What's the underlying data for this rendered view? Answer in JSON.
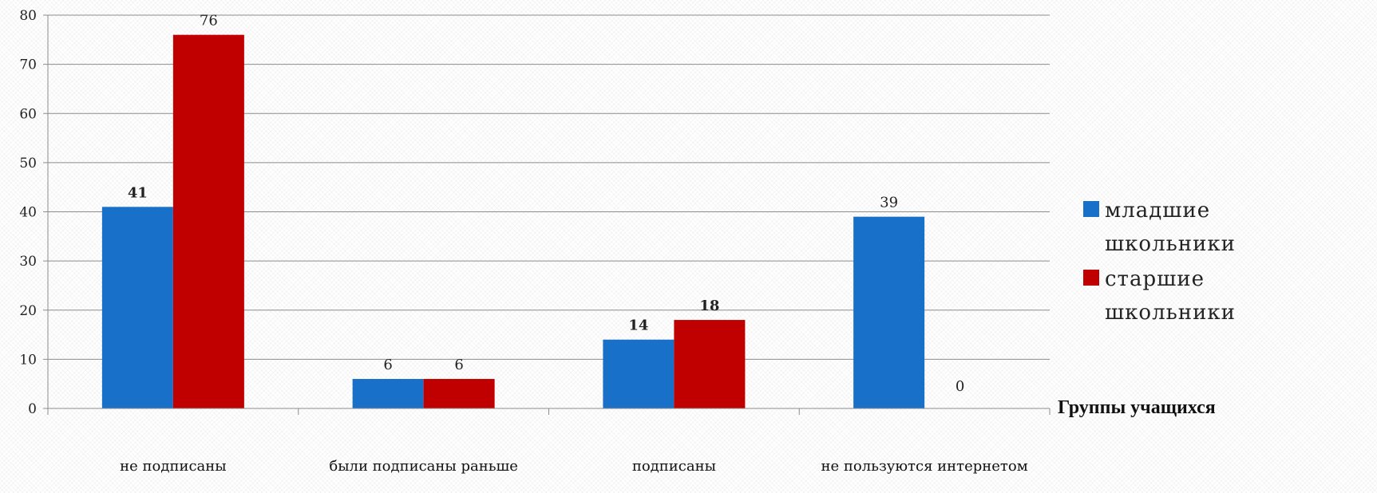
{
  "chart_data": {
    "type": "bar",
    "categories": [
      "не подписаны",
      "были подписаны раньше",
      "подписаны",
      "не пользуются интернетом"
    ],
    "series": [
      {
        "name": "младшие школьники",
        "legend_lines": [
          "младшие",
          "школьники"
        ],
        "color": "#1870C8",
        "values": [
          41,
          6,
          14,
          39
        ]
      },
      {
        "name": "старшие школьники",
        "legend_lines": [
          "старшие",
          "школьники"
        ],
        "color": "#C00000",
        "values": [
          76,
          6,
          18,
          0
        ]
      }
    ],
    "ylim": [
      0,
      80
    ],
    "yticks": [
      0,
      10,
      20,
      30,
      40,
      50,
      60,
      70,
      80
    ],
    "xlabel": "Группы учащихся",
    "ylabel": "",
    "title": "",
    "grid": true,
    "legend_position": "right"
  }
}
